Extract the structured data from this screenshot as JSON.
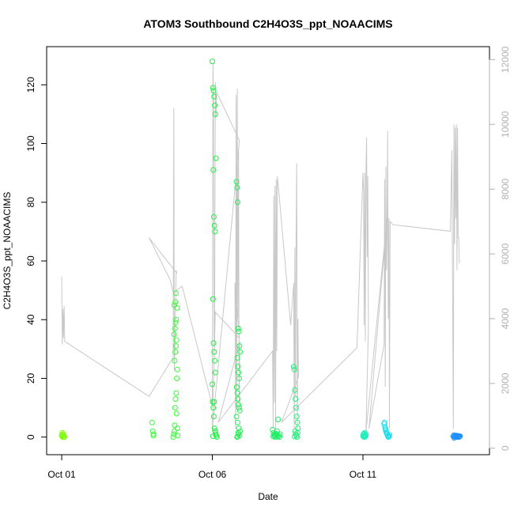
{
  "chart_data": {
    "type": "scatter",
    "title": "ATOM3 Southbound C2H4O3S_ppt_NOAACIMS",
    "xlabel": "Date",
    "ylabel": "C2H4O3S_ppt_NOAACIMS",
    "x_tick_labels": [
      "Oct 01",
      "Oct 06",
      "Oct 11"
    ],
    "x_tick_days": [
      1,
      6,
      11
    ],
    "xlim_days": [
      0.5,
      15.2
    ],
    "ylim": [
      -6,
      133
    ],
    "y_ticks": [
      0,
      20,
      40,
      60,
      80,
      100,
      120
    ],
    "y2_ticks": [
      0,
      2000,
      4000,
      6000,
      8000,
      10000,
      12000
    ],
    "y2lim": [
      -200,
      12400
    ],
    "grid": false,
    "scatter_series": [
      {
        "name": "",
        "color": "#7cfc00",
        "x": [
          1.0,
          1.02,
          1.03,
          1.05,
          1.07,
          1.09,
          1.01,
          1.04
        ],
        "y": [
          0.5,
          1.5,
          0,
          1,
          0.3,
          0,
          0.8,
          0.2
        ]
      },
      {
        "name": "",
        "color": "#33ff33",
        "x": [
          4.0,
          4.02,
          4.04,
          4.05,
          4.7,
          4.72,
          4.74,
          4.75,
          4.76,
          4.78,
          4.8,
          4.82,
          4.84,
          4.75,
          4.77,
          4.79,
          4.81,
          4.73,
          4.76,
          4.78,
          4.8,
          4.83,
          4.74,
          4.77,
          4.79,
          4.81,
          4.84,
          4.85
        ],
        "y": [
          5,
          2,
          0.5,
          1,
          0,
          1,
          2,
          4,
          10,
          13,
          15,
          20,
          23,
          26,
          29,
          31,
          33,
          35,
          37,
          39,
          40,
          44,
          45,
          46,
          49,
          8,
          3,
          0.5
        ]
      },
      {
        "name": "",
        "color": "#22ee44",
        "x": [
          6.0,
          6.02,
          6.04,
          6.06,
          6.08,
          6.1,
          6.12,
          6.03,
          6.05,
          6.07,
          6.09,
          6.02,
          6.04,
          6.06,
          6.08,
          6.1,
          6.0,
          6.01,
          6.03,
          6.05,
          6.07,
          6.09,
          6.11,
          6.13,
          6.15,
          6.02,
          6.06,
          6.1
        ],
        "y": [
          128,
          119,
          118,
          116,
          113,
          110,
          95,
          91,
          75,
          72,
          70,
          47,
          32,
          29,
          26,
          22,
          18,
          12,
          10,
          7,
          3,
          2,
          1,
          0.5,
          0,
          0.3,
          12,
          2
        ]
      },
      {
        "name": "",
        "color": "#22ee55",
        "x": [
          6.8,
          6.82,
          6.84,
          6.86,
          6.88,
          6.9,
          6.92,
          6.83,
          6.85,
          6.87,
          6.89,
          6.81,
          6.83,
          6.85,
          6.87,
          6.89,
          6.91,
          6.8,
          6.84,
          6.88,
          6.92,
          6.86,
          6.9,
          6.82,
          6.84,
          6.86
        ],
        "y": [
          87,
          85,
          80,
          37,
          36,
          31,
          29,
          27,
          24,
          22,
          20,
          17,
          15,
          13,
          11,
          10,
          9,
          7,
          5,
          3,
          2,
          1,
          0.5,
          0,
          0.2,
          1.5
        ]
      },
      {
        "name": "",
        "color": "#22ee66",
        "x": [
          8.0,
          8.03,
          8.06,
          8.09,
          8.12,
          8.15,
          8.18,
          8.2,
          8.23,
          8.25,
          8.02,
          8.05,
          8.08,
          8.11,
          8.14,
          8.17
        ],
        "y": [
          2.5,
          1.5,
          0.5,
          0,
          1,
          2,
          6,
          0.5,
          0,
          1,
          0.2,
          0.8,
          0.4,
          1.2,
          0.6,
          0.1
        ]
      },
      {
        "name": "",
        "color": "#22ee77",
        "x": [
          8.7,
          8.72,
          8.74,
          8.76,
          8.78,
          8.8,
          8.82,
          8.84,
          8.75,
          8.77,
          8.79,
          8.81,
          8.73,
          8.83
        ],
        "y": [
          24,
          23,
          16,
          13,
          10,
          7,
          5,
          3,
          2,
          1,
          0.5,
          0,
          0.2,
          1.5
        ]
      },
      {
        "name": "",
        "color": "#22eebb",
        "x": [
          11.0,
          11.02,
          11.04,
          11.06,
          11.08,
          11.1,
          11.01,
          11.03,
          11.05,
          11.07,
          11.09
        ],
        "y": [
          0.5,
          1,
          0,
          1.5,
          0.3,
          0.8,
          0.2,
          1.2,
          0.6,
          0.1,
          0.9
        ]
      },
      {
        "name": "",
        "color": "#22ddee",
        "x": [
          11.7,
          11.72,
          11.74,
          11.76,
          11.78,
          11.8,
          11.82,
          11.84,
          11.86,
          11.88,
          11.75,
          11.79,
          11.83,
          11.87,
          11.73
        ],
        "y": [
          4.5,
          5,
          3,
          2,
          1.5,
          1,
          0.5,
          0,
          0.3,
          0.8,
          2.5,
          1.2,
          0.6,
          0.2,
          3.5
        ]
      },
      {
        "name": "",
        "color": "#1e90ff",
        "x": [
          14.0,
          14.02,
          14.04,
          14.06,
          14.08,
          14.1,
          14.12,
          14.14,
          14.16,
          14.18,
          14.2,
          14.22,
          14.03,
          14.07,
          14.11,
          14.15,
          14.19
        ],
        "y": [
          0.3,
          0.6,
          0.1,
          0.4,
          0.2,
          0.5,
          0,
          0.3,
          0.4,
          0.1,
          0.2,
          0.3,
          -0.3,
          0.5,
          0.2,
          0.4,
          0
        ]
      }
    ],
    "line_series": {
      "name": "",
      "color": "#c8c8c8",
      "axis": "right",
      "x": [
        1.0,
        1.02,
        1.04,
        1.06,
        1.08,
        1.1,
        3.9,
        4.7,
        4.72,
        4.74,
        4.76,
        4.78,
        4.8,
        4.82,
        3.9,
        4.6,
        4.7,
        5.0,
        6.0,
        6.02,
        6.04,
        6.06,
        6.08,
        6.1,
        6.12,
        6.14,
        6.9,
        6.0,
        6.1,
        6.9,
        6.75,
        6.77,
        6.79,
        6.81,
        6.83,
        6.85,
        6.87,
        6.89,
        6.91,
        6.2,
        8.0,
        8.02,
        8.04,
        8.06,
        8.08,
        8.1,
        8.12,
        8.14,
        8.16,
        8.6,
        8.7,
        8.72,
        8.74,
        8.76,
        8.78,
        8.8,
        8.82,
        8.84,
        8.86,
        8.3,
        10.8,
        11.0,
        11.02,
        11.04,
        11.06,
        11.08,
        11.1,
        11.12,
        11.14,
        11.16,
        11.18,
        11.1,
        11.8,
        11.2,
        11.7,
        11.72,
        11.74,
        11.76,
        11.78,
        11.8,
        11.82,
        11.84,
        11.86,
        11.88,
        11.9,
        12.0,
        13.9,
        13.95,
        14.0,
        14.02,
        14.04,
        14.06,
        14.08,
        14.1,
        14.12,
        14.14,
        14.16,
        14.18,
        14.2
      ],
      "y": [
        5300,
        3200,
        4300,
        3400,
        4400,
        3300,
        1600,
        2800,
        10500,
        2400,
        3200,
        4400,
        5500,
        5400,
        6500,
        5200,
        4800,
        5000,
        1300,
        11900,
        10700,
        2800,
        5000,
        11300,
        10200,
        11000,
        9500,
        600,
        4200,
        3400,
        5100,
        600,
        10900,
        1200,
        11100,
        4000,
        9200,
        1300,
        3300,
        800,
        3000,
        600,
        7800,
        1400,
        8100,
        600,
        8300,
        3000,
        8400,
        3800,
        5100,
        600,
        6200,
        1600,
        6300,
        8800,
        600,
        4000,
        2200,
        800,
        3100,
        8500,
        7900,
        3800,
        8500,
        3300,
        8600,
        9600,
        5900,
        8400,
        3800,
        500,
        7100,
        600,
        3200,
        8300,
        1900,
        8700,
        5500,
        6700,
        9800,
        4000,
        7100,
        600,
        7000,
        6900,
        6700,
        9200,
        600,
        10000,
        6300,
        9900,
        7100,
        10000,
        5500,
        9900,
        6500,
        6500,
        5700
      ]
    }
  }
}
